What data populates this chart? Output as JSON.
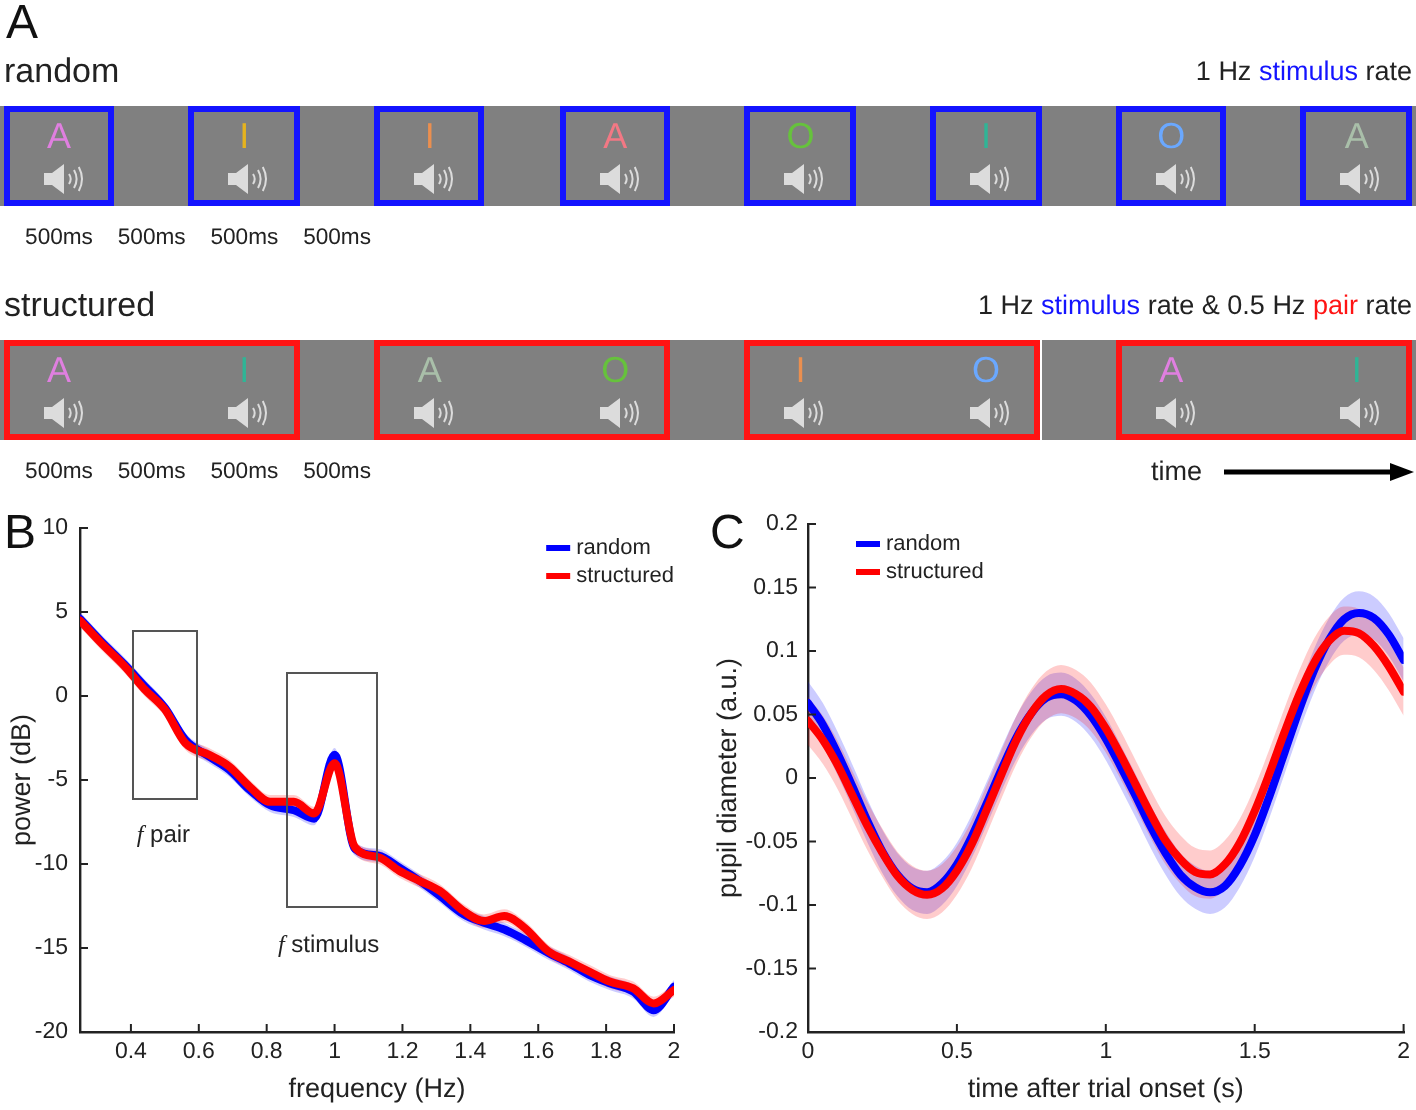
{
  "chart_data": [
    {
      "type": "other",
      "title": "A"
    },
    {
      "type": "other",
      "title": "random",
      "subtitle": "1 Hz stimulus rate",
      "categories": [
        "A",
        "I",
        "I",
        "A",
        "O",
        "I",
        "O",
        "A"
      ],
      "colors": [
        "#e07fe0",
        "#e6b31e",
        "#eb8f4f",
        "#f27884",
        "#66c23c",
        "#2fb596",
        "#6aa8ff",
        "#a9bfa9"
      ],
      "color": "#1414ff",
      "annotations": [
        "500ms",
        "500ms",
        "500ms",
        "500ms"
      ]
    },
    {
      "type": "other",
      "title": "structured",
      "subtitle": "1 Hz stimulus rate & 0.5 Hz pair rate",
      "categories": [
        "A",
        "I",
        "A",
        "O",
        "I",
        "O",
        "A",
        "I"
      ],
      "colors": [
        "#e07fe0",
        "#2fb596",
        "#a9bfa9",
        "#66c23c",
        "#eb8f4f",
        "#6aa8ff",
        "#e07fe0",
        "#2fb596"
      ],
      "color": "#ff1414",
      "annotations": [
        "500ms",
        "500ms",
        "500ms",
        "500ms"
      ],
      "xlabel": "time"
    },
    {
      "type": "line",
      "title": "B",
      "xlabel": "frequency (Hz)",
      "ylabel": "power (dB)",
      "xlim": [
        0.25,
        2
      ],
      "xticks": [
        0.4,
        0.6,
        0.8,
        1,
        1.2,
        1.4,
        1.6,
        1.8,
        2
      ],
      "ylim": [
        -20,
        10
      ],
      "yticks": [
        -20,
        -15,
        -10,
        -5,
        0,
        5,
        10
      ],
      "legend": "top right",
      "x": [
        0.25,
        0.31,
        0.38,
        0.44,
        0.5,
        0.56,
        0.63,
        0.69,
        0.75,
        0.81,
        0.88,
        0.94,
        1,
        1.06,
        1.13,
        1.19,
        1.25,
        1.31,
        1.38,
        1.44,
        1.5,
        1.56,
        1.63,
        1.69,
        1.75,
        1.81,
        1.88,
        1.94,
        2
      ],
      "series": [
        {
          "name": "random",
          "color": "#0000ff",
          "values": [
            4.6,
            3.3,
            1.9,
            0.6,
            -0.7,
            -2.6,
            -3.6,
            -4.4,
            -5.6,
            -6.5,
            -6.8,
            -7.3,
            -3.5,
            -9.1,
            -9.5,
            -10.2,
            -11.0,
            -11.9,
            -13.0,
            -13.5,
            -13.9,
            -14.5,
            -15.3,
            -15.9,
            -16.6,
            -17.1,
            -17.6,
            -18.7,
            -17.3
          ],
          "lower": [
            4.2,
            2.9,
            1.5,
            0.2,
            -1.1,
            -3.0,
            -4.0,
            -4.8,
            -6.0,
            -6.9,
            -7.2,
            -7.7,
            -3.9,
            -9.5,
            -9.9,
            -10.6,
            -11.4,
            -12.3,
            -13.4,
            -13.9,
            -14.3,
            -14.9,
            -15.7,
            -16.3,
            -17.0,
            -17.5,
            -18.0,
            -19.1,
            -17.7
          ],
          "upper": [
            5.0,
            3.7,
            2.3,
            1.0,
            -0.3,
            -2.2,
            -3.2,
            -4.0,
            -5.2,
            -6.1,
            -6.4,
            -6.9,
            -3.1,
            -8.7,
            -9.1,
            -9.8,
            -10.6,
            -11.5,
            -12.6,
            -13.1,
            -13.5,
            -14.1,
            -14.9,
            -15.5,
            -16.2,
            -16.7,
            -17.2,
            -18.3,
            -16.9
          ]
        },
        {
          "name": "structured",
          "color": "#ff0000",
          "values": [
            4.5,
            3.2,
            1.8,
            0.4,
            -0.8,
            -2.8,
            -3.5,
            -4.2,
            -5.4,
            -6.3,
            -6.3,
            -7.0,
            -4.0,
            -9.0,
            -9.6,
            -10.4,
            -11.0,
            -11.6,
            -12.8,
            -13.4,
            -13.1,
            -13.8,
            -15.2,
            -15.8,
            -16.4,
            -17.0,
            -17.4,
            -18.3,
            -17.5
          ],
          "lower": [
            4.1,
            2.8,
            1.4,
            0.0,
            -1.2,
            -3.2,
            -3.9,
            -4.6,
            -5.8,
            -6.7,
            -6.7,
            -7.4,
            -4.4,
            -9.4,
            -10.0,
            -10.8,
            -11.4,
            -12.0,
            -13.2,
            -13.8,
            -13.5,
            -14.2,
            -15.6,
            -16.2,
            -16.8,
            -17.4,
            -17.8,
            -18.7,
            -17.9
          ],
          "upper": [
            4.9,
            3.6,
            2.2,
            0.8,
            -0.4,
            -2.4,
            -3.1,
            -3.8,
            -5.0,
            -5.9,
            -5.9,
            -6.6,
            -3.6,
            -8.6,
            -9.2,
            -10.0,
            -10.6,
            -11.2,
            -12.4,
            -13.0,
            -12.7,
            -13.4,
            -14.8,
            -15.4,
            -16.0,
            -16.6,
            -17.0,
            -17.9,
            -17.1
          ]
        }
      ],
      "annotations": [
        "f pair",
        "f stimulus"
      ]
    },
    {
      "type": "line",
      "title": "C",
      "xlabel": "time after trial onset (s)",
      "ylabel": "pupil diameter (a.u.)",
      "xlim": [
        0,
        2
      ],
      "xticks": [
        0,
        0.5,
        1,
        1.5,
        2
      ],
      "ylim": [
        -0.2,
        0.2
      ],
      "yticks": [
        -0.2,
        -0.15,
        -0.1,
        -0.05,
        0,
        0.05,
        0.1,
        0.15,
        0.2
      ],
      "legend": "top left",
      "x": [
        0,
        0.05,
        0.1,
        0.15,
        0.2,
        0.25,
        0.3,
        0.35,
        0.4,
        0.45,
        0.5,
        0.55,
        0.6,
        0.65,
        0.7,
        0.75,
        0.8,
        0.85,
        0.9,
        0.95,
        1,
        1.05,
        1.1,
        1.15,
        1.2,
        1.25,
        1.3,
        1.35,
        1.4,
        1.45,
        1.5,
        1.55,
        1.6,
        1.65,
        1.7,
        1.75,
        1.8,
        1.85,
        1.9,
        1.95,
        2
      ],
      "series": [
        {
          "name": "random",
          "color": "#0000ff",
          "values": [
            0.059,
            0.042,
            0.019,
            -0.007,
            -0.034,
            -0.058,
            -0.076,
            -0.087,
            -0.09,
            -0.083,
            -0.068,
            -0.046,
            -0.02,
            0.007,
            0.032,
            0.051,
            0.063,
            0.066,
            0.061,
            0.049,
            0.031,
            0.009,
            -0.014,
            -0.038,
            -0.059,
            -0.076,
            -0.086,
            -0.09,
            -0.085,
            -0.069,
            -0.045,
            -0.014,
            0.02,
            0.054,
            0.085,
            0.109,
            0.125,
            0.13,
            0.126,
            0.113,
            0.093
          ],
          "lower": [
            0.042,
            0.025,
            0.002,
            -0.024,
            -0.051,
            -0.075,
            -0.093,
            -0.104,
            -0.107,
            -0.1,
            -0.085,
            -0.063,
            -0.037,
            -0.01,
            0.015,
            0.034,
            0.046,
            0.049,
            0.044,
            0.032,
            0.014,
            -0.008,
            -0.031,
            -0.055,
            -0.076,
            -0.093,
            -0.103,
            -0.107,
            -0.102,
            -0.086,
            -0.062,
            -0.031,
            0.003,
            0.037,
            0.068,
            0.092,
            0.108,
            0.113,
            0.109,
            0.096,
            0.076
          ],
          "upper": [
            0.076,
            0.059,
            0.036,
            0.01,
            -0.017,
            -0.041,
            -0.059,
            -0.07,
            -0.073,
            -0.066,
            -0.051,
            -0.029,
            -0.003,
            0.024,
            0.049,
            0.068,
            0.08,
            0.083,
            0.078,
            0.066,
            0.048,
            0.026,
            0.003,
            -0.021,
            -0.042,
            -0.059,
            -0.069,
            -0.073,
            -0.068,
            -0.052,
            -0.028,
            0.003,
            0.037,
            0.071,
            0.102,
            0.126,
            0.142,
            0.147,
            0.143,
            0.13,
            0.11
          ]
        },
        {
          "name": "structured",
          "color": "#ff0000",
          "values": [
            0.045,
            0.03,
            0.01,
            -0.014,
            -0.038,
            -0.059,
            -0.077,
            -0.088,
            -0.092,
            -0.087,
            -0.073,
            -0.052,
            -0.025,
            0.003,
            0.03,
            0.051,
            0.065,
            0.07,
            0.066,
            0.056,
            0.039,
            0.018,
            -0.005,
            -0.028,
            -0.049,
            -0.064,
            -0.074,
            -0.076,
            -0.068,
            -0.051,
            -0.026,
            0.004,
            0.036,
            0.066,
            0.091,
            0.108,
            0.116,
            0.114,
            0.104,
            0.088,
            0.068
          ],
          "lower": [
            0.026,
            0.011,
            -0.009,
            -0.033,
            -0.057,
            -0.078,
            -0.096,
            -0.107,
            -0.111,
            -0.106,
            -0.092,
            -0.071,
            -0.044,
            -0.016,
            0.011,
            0.032,
            0.046,
            0.051,
            0.047,
            0.037,
            0.02,
            -0.001,
            -0.024,
            -0.047,
            -0.068,
            -0.083,
            -0.093,
            -0.095,
            -0.087,
            -0.07,
            -0.045,
            -0.015,
            0.017,
            0.047,
            0.072,
            0.089,
            0.097,
            0.095,
            0.085,
            0.069,
            0.049
          ],
          "upper": [
            0.064,
            0.049,
            0.029,
            0.005,
            -0.019,
            -0.04,
            -0.058,
            -0.069,
            -0.073,
            -0.068,
            -0.054,
            -0.033,
            -0.006,
            0.022,
            0.049,
            0.07,
            0.084,
            0.089,
            0.085,
            0.075,
            0.058,
            0.037,
            0.014,
            -0.009,
            -0.03,
            -0.045,
            -0.055,
            -0.057,
            -0.049,
            -0.032,
            -0.007,
            0.023,
            0.055,
            0.085,
            0.11,
            0.127,
            0.135,
            0.133,
            0.123,
            0.107,
            0.087
          ]
        }
      ]
    }
  ]
}
